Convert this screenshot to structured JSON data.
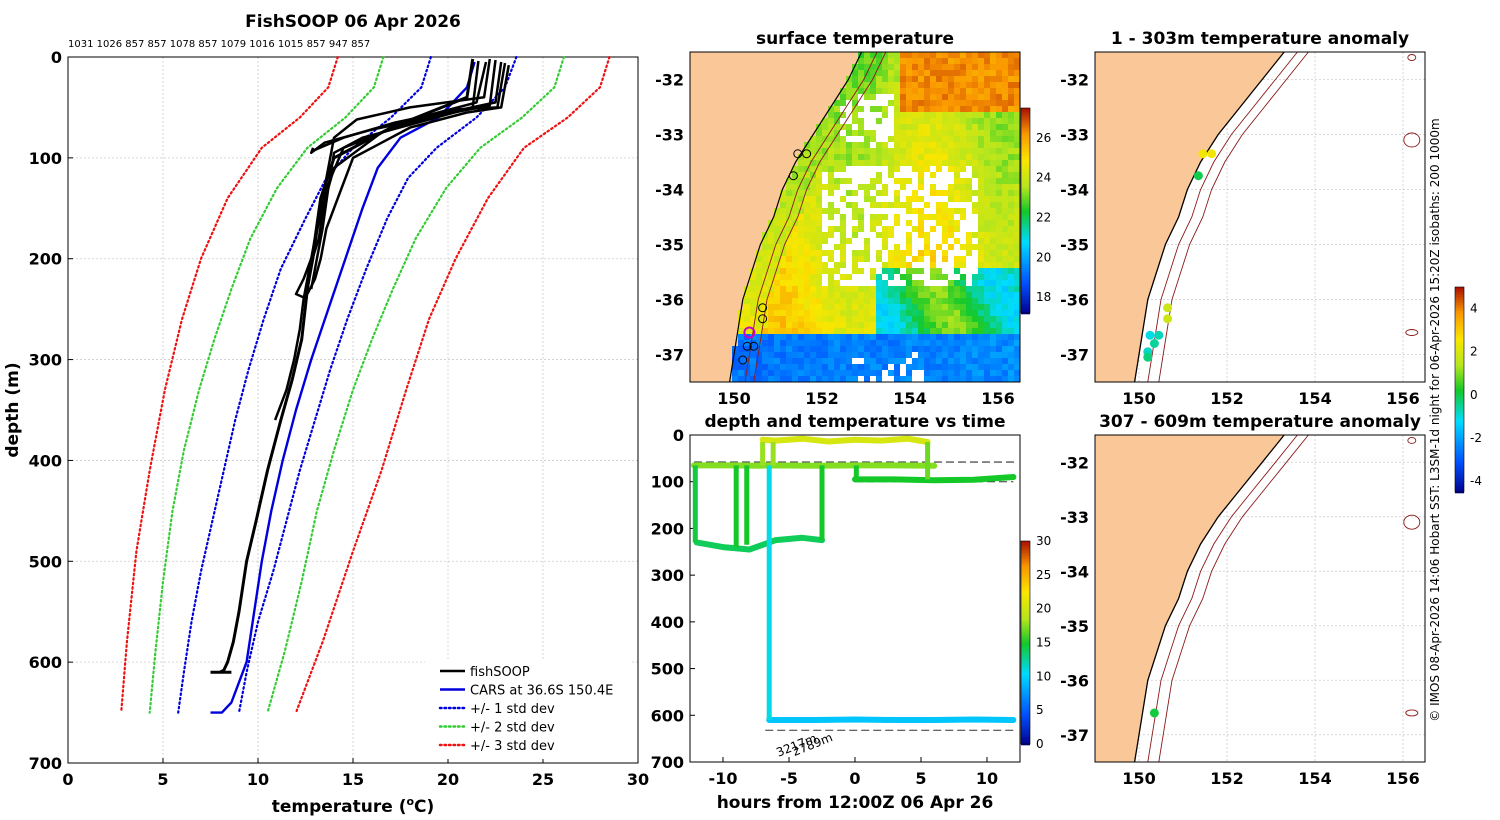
{
  "chart_data": [
    {
      "id": "profile",
      "type": "line",
      "title": "FishSOOP 06 Apr 2026",
      "header_numbers": "1031 1026 857 857 1078 857 1079 1016 1015 857 947 857",
      "xlabel": "temperature (",
      "xlabel_sup": "o",
      "xlabel_tail": "C)",
      "ylabel": "depth (m)",
      "xlim": [
        0,
        30
      ],
      "ylim": [
        0,
        700
      ],
      "y_reversed": true,
      "xticks": [
        0,
        5,
        10,
        15,
        20,
        25,
        30
      ],
      "yticks": [
        0,
        100,
        200,
        300,
        400,
        500,
        600,
        700
      ],
      "grid": true,
      "legend_position": "bottom-right",
      "legend": [
        {
          "label": "fishSOOP",
          "color": "#000000",
          "style": "solid"
        },
        {
          "label": "CARS at 36.6S 150.4E",
          "color": "#0000dd",
          "style": "solid"
        },
        {
          "label": "+/- 1 std dev",
          "color": "#0000dd",
          "style": "dotted"
        },
        {
          "label": "+/- 2 std dev",
          "color": "#33cc33",
          "style": "dotted"
        },
        {
          "label": "+/- 3 std dev",
          "color": "#ee1111",
          "style": "dotted"
        }
      ],
      "series": [
        {
          "name": "CARS mean",
          "color": "#0000dd",
          "style": "solid",
          "x": [
            21.4,
            21.0,
            19.5,
            17.5,
            16.3,
            15.5,
            14.6,
            13.7,
            12.8,
            12.0,
            11.3,
            10.7,
            10.2,
            9.8,
            9.4,
            9.0,
            8.6,
            8.1,
            7.8,
            7.5
          ],
          "y": [
            5,
            30,
            60,
            80,
            110,
            150,
            200,
            250,
            300,
            350,
            400,
            450,
            500,
            550,
            600,
            620,
            640,
            650,
            650,
            650
          ]
        },
        {
          "name": "-1 sd",
          "color": "#0000dd",
          "style": "dotted",
          "x": [
            19.1,
            18.6,
            17.0,
            15.0,
            13.6,
            12.5,
            11.2,
            10.3,
            9.5,
            8.8,
            8.2,
            7.6,
            7.0,
            6.5,
            6.1,
            5.8
          ],
          "y": [
            0,
            30,
            60,
            90,
            120,
            160,
            210,
            260,
            310,
            360,
            410,
            460,
            510,
            560,
            610,
            650
          ]
        },
        {
          "name": "+1 sd",
          "color": "#0000dd",
          "style": "dotted",
          "x": [
            23.6,
            23.0,
            21.5,
            19.4,
            17.9,
            16.8,
            15.7,
            14.7,
            13.8,
            13.0,
            12.2,
            11.5,
            10.8,
            10.0,
            9.4,
            9.0
          ],
          "y": [
            0,
            30,
            60,
            90,
            120,
            160,
            210,
            260,
            310,
            360,
            410,
            460,
            510,
            560,
            610,
            650
          ]
        },
        {
          "name": "-2 sd",
          "color": "#33cc33",
          "style": "dotted",
          "x": [
            16.6,
            16.1,
            14.6,
            12.6,
            11.0,
            9.6,
            8.6,
            7.7,
            6.9,
            6.1,
            5.5,
            5.0,
            4.6,
            4.3
          ],
          "y": [
            0,
            30,
            60,
            90,
            130,
            180,
            230,
            280,
            330,
            390,
            450,
            520,
            590,
            650
          ]
        },
        {
          "name": "+2 sd",
          "color": "#33cc33",
          "style": "dotted",
          "x": [
            26.1,
            25.6,
            23.9,
            21.7,
            19.9,
            18.3,
            17.1,
            16.0,
            15.0,
            14.0,
            13.1,
            12.3,
            11.4,
            10.5
          ],
          "y": [
            0,
            30,
            60,
            90,
            130,
            180,
            230,
            280,
            330,
            390,
            450,
            520,
            590,
            650
          ]
        },
        {
          "name": "-3 sd",
          "color": "#ee1111",
          "style": "dotted",
          "x": [
            14.2,
            13.7,
            12.2,
            10.2,
            8.4,
            7.0,
            6.0,
            5.1,
            4.3,
            3.6,
            3.1,
            2.8
          ],
          "y": [
            0,
            30,
            60,
            90,
            140,
            200,
            260,
            330,
            410,
            490,
            580,
            650
          ]
        },
        {
          "name": "+3 sd",
          "color": "#ee1111",
          "style": "dotted",
          "x": [
            28.5,
            28.0,
            26.3,
            24.0,
            22.1,
            20.4,
            19.0,
            17.8,
            16.5,
            15.0,
            13.4,
            12.0
          ],
          "y": [
            0,
            30,
            60,
            90,
            140,
            200,
            260,
            330,
            410,
            490,
            580,
            650
          ]
        },
        {
          "name": "fishSOOP 1",
          "color": "#000000",
          "style": "solid",
          "width": 3,
          "x": [
            21.3,
            21.0,
            17.0,
            14.0,
            13.3,
            13.0,
            12.6,
            12.3,
            11.8,
            11.2,
            10.5,
            9.9,
            9.4,
            9.0,
            8.7,
            8.4,
            8.2,
            8.0
          ],
          "y": [
            2,
            40,
            70,
            100,
            140,
            180,
            230,
            280,
            320,
            360,
            410,
            460,
            500,
            550,
            580,
            600,
            608,
            610
          ]
        },
        {
          "name": "fishSOOP 2",
          "color": "#000000",
          "style": "solid",
          "width": 2.5,
          "x": [
            22.0,
            21.5,
            18.5,
            14.5,
            13.6,
            13.2,
            12.7,
            12.4,
            12.2,
            11.9,
            11.5,
            10.9
          ],
          "y": [
            5,
            45,
            60,
            90,
            130,
            180,
            210,
            240,
            270,
            300,
            330,
            360
          ]
        },
        {
          "name": "fishSOOP 3",
          "color": "#000000",
          "style": "solid",
          "width": 2.5,
          "x": [
            22.8,
            22.5,
            20.0,
            16.5,
            14.0,
            13.4,
            13.0,
            12.8,
            12.4,
            12.0,
            12.6
          ],
          "y": [
            5,
            45,
            55,
            75,
            110,
            150,
            180,
            200,
            220,
            235,
            240
          ]
        },
        {
          "name": "fishSOOP 4",
          "color": "#000000",
          "style": "solid",
          "width": 2.5,
          "x": [
            23.2,
            22.8,
            21.0,
            18.0,
            15.0,
            14.2,
            13.6,
            13.3,
            13.0,
            12.6
          ],
          "y": [
            8,
            50,
            55,
            70,
            100,
            140,
            170,
            200,
            220,
            235
          ]
        },
        {
          "name": "fishSOOP 5",
          "color": "#000000",
          "style": "solid",
          "width": 2.5,
          "x": [
            21.6,
            21.3,
            19.0,
            15.5,
            14.0,
            13.7,
            13.4,
            13.1,
            12.8
          ],
          "y": [
            4,
            50,
            62,
            80,
            95,
            130,
            170,
            200,
            230
          ]
        },
        {
          "name": "fishSOOP 6",
          "color": "#000000",
          "style": "solid",
          "width": 2.5,
          "x": [
            22.5,
            22.2,
            19.5,
            16.0,
            13.5,
            12.8,
            12.9
          ],
          "y": [
            3,
            48,
            58,
            72,
            85,
            95,
            90
          ]
        },
        {
          "name": "fishSOOP 7",
          "color": "#000000",
          "style": "solid",
          "width": 2.5,
          "x": [
            23.0,
            22.6,
            20.5,
            17.2,
            14.5,
            13.0,
            13.4
          ],
          "y": [
            6,
            50,
            52,
            65,
            80,
            92,
            88
          ]
        },
        {
          "name": "fishSOOP 8",
          "color": "#000000",
          "style": "solid",
          "width": 2.5,
          "x": [
            22.2,
            21.9,
            18.0,
            15.2,
            14.0,
            13.6,
            13.2,
            12.9,
            12.5
          ],
          "y": [
            2,
            40,
            50,
            62,
            80,
            120,
            160,
            200,
            240
          ]
        }
      ]
    },
    {
      "id": "sst_map",
      "type": "heatmap",
      "title": "surface temperature",
      "xlim": [
        149.0,
        156.5
      ],
      "ylim": [
        -37.5,
        -31.5
      ],
      "xticks": [
        150,
        152,
        154,
        156
      ],
      "yticks": [
        -32,
        -33,
        -34,
        -35,
        -36,
        -37
      ],
      "colorbar": {
        "ticks": [
          18,
          20,
          22,
          24,
          26
        ],
        "range": [
          17.2,
          27.5
        ]
      },
      "hidden_text": []
    },
    {
      "id": "depth_time",
      "type": "scatter",
      "title": "depth and temperature vs time",
      "xlabel": "hours from 12:00Z 06 Apr 26",
      "xlim": [
        -12.5,
        12.5
      ],
      "ylim": [
        0,
        700
      ],
      "y_reversed": true,
      "xticks": [
        -10,
        -5,
        0,
        5,
        10
      ],
      "yticks": [
        0,
        100,
        200,
        300,
        400,
        500,
        600,
        700
      ],
      "colorbar": {
        "ticks": [
          0,
          5,
          10,
          15,
          20,
          25,
          30
        ],
        "range": [
          0,
          30
        ]
      },
      "annotations": [
        "3217m",
        "2789m"
      ],
      "series": [
        {
          "name": "surface cruise",
          "temp": 20.5,
          "x": [
            -7.0,
            -6.0,
            -4.0,
            -2.0,
            0.0,
            2.0,
            4.0,
            5.5
          ],
          "y": [
            10,
            12,
            8,
            14,
            10,
            12,
            8,
            15
          ]
        },
        {
          "name": "shallow",
          "temp": 17.5,
          "x": [
            -12.2,
            -9.0,
            -7.5,
            -6.5,
            -3.0,
            0.0,
            3.0,
            6.0
          ],
          "y": [
            65,
            65,
            66,
            65,
            66,
            65,
            65,
            66
          ]
        },
        {
          "name": "shelf tow",
          "temp": 15.0,
          "x": [
            0.0,
            3.0,
            6.0,
            9.0,
            12.0
          ],
          "y": [
            95,
            95,
            97,
            96,
            90
          ]
        },
        {
          "name": "mid tow",
          "temp": 14.0,
          "x": [
            -12.0,
            -10.0,
            -8.0,
            -6.0,
            -4.0,
            -2.5
          ],
          "y": [
            230,
            240,
            245,
            225,
            220,
            225
          ]
        },
        {
          "name": "deep tow",
          "temp": 9.5,
          "x": [
            -6.5,
            -3.0,
            0.0,
            3.0,
            6.0,
            9.0,
            12.0
          ],
          "y": [
            610,
            610,
            609,
            610,
            610,
            609,
            610
          ]
        }
      ]
    },
    {
      "id": "anom_1",
      "type": "scatter",
      "title": "1 - 303m temperature anomaly",
      "xlim": [
        149.0,
        156.5
      ],
      "ylim": [
        -37.5,
        -31.5
      ],
      "xticks": [
        150,
        152,
        154,
        156
      ],
      "yticks": [
        -32,
        -33,
        -34,
        -35,
        -36,
        -37
      ],
      "points": [
        {
          "lon": 151.45,
          "lat": -33.35,
          "anom": 2.5
        },
        {
          "lon": 151.65,
          "lat": -33.35,
          "anom": 2.5
        },
        {
          "lon": 151.35,
          "lat": -33.75,
          "anom": 0.0
        },
        {
          "lon": 150.65,
          "lat": -36.15,
          "anom": 1.8
        },
        {
          "lon": 150.65,
          "lat": -36.35,
          "anom": 1.8
        },
        {
          "lon": 150.25,
          "lat": -36.65,
          "anom": -1.0
        },
        {
          "lon": 150.45,
          "lat": -36.65,
          "anom": -0.7
        },
        {
          "lon": 150.35,
          "lat": -36.8,
          "anom": -0.5
        },
        {
          "lon": 150.2,
          "lat": -36.95,
          "anom": -0.8
        },
        {
          "lon": 150.2,
          "lat": -37.05,
          "anom": -0.3
        }
      ]
    },
    {
      "id": "anom_2",
      "type": "scatter",
      "title": "307 - 609m temperature anomaly",
      "xlim": [
        149.0,
        156.5
      ],
      "ylim": [
        -37.5,
        -31.5
      ],
      "xticks": [
        150,
        152,
        154,
        156
      ],
      "yticks": [
        -32,
        -33,
        -34,
        -35,
        -36,
        -37
      ],
      "points": [
        {
          "lon": 150.35,
          "lat": -36.6,
          "anom": 0.1
        }
      ],
      "colorbar": {
        "ticks": [
          -4,
          -2,
          0,
          2,
          4
        ],
        "range": [
          -4.5,
          5
        ]
      }
    }
  ],
  "footer_text": "© IMOS 08-Apr-2026 14:06 Hobart SST: L3SM-1d night for 06-Apr-2026 15:20Z isobaths: 200  1000m"
}
